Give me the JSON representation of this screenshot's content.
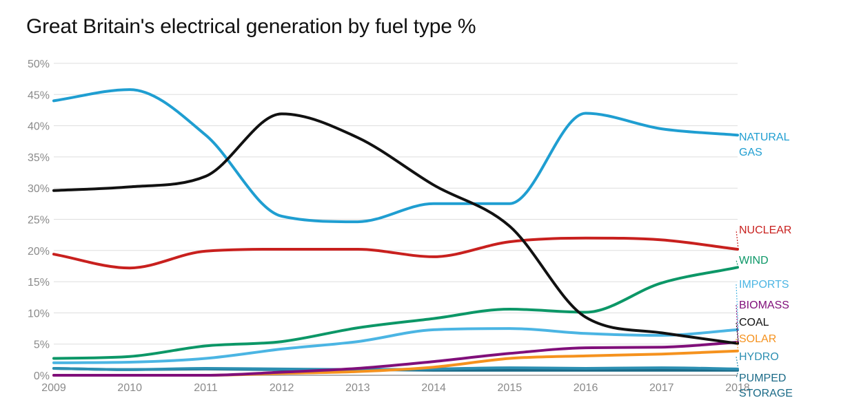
{
  "chart_data": {
    "type": "line",
    "title": "Great Britain's electrical generation by fuel type %",
    "xlabel": "",
    "ylabel": "",
    "x": [
      2009,
      2010,
      2011,
      2012,
      2013,
      2014,
      2015,
      2016,
      2017,
      2018
    ],
    "xtick_labels": [
      "2009",
      "2010",
      "2011",
      "2012",
      "2013",
      "2014",
      "2015",
      "2016",
      "2017",
      "2018"
    ],
    "ylim": [
      0,
      50
    ],
    "yticks": [
      0,
      5,
      10,
      15,
      20,
      25,
      30,
      35,
      40,
      45,
      50
    ],
    "ytick_labels": [
      "0%",
      "5%",
      "10%",
      "15%",
      "20%",
      "25%",
      "30%",
      "35%",
      "40%",
      "45%",
      "50%"
    ],
    "grid": true,
    "series": [
      {
        "name": "NATURAL GAS",
        "label_lines": [
          "NATURAL",
          "GAS"
        ],
        "color": "#1f9ed1",
        "values": [
          44,
          45.8,
          38.5,
          25.5,
          24.6,
          27.5,
          27.5,
          42,
          39.5,
          38.5
        ]
      },
      {
        "name": "NUCLEAR",
        "label_lines": [
          "NUCLEAR"
        ],
        "color": "#c8201e",
        "values": [
          19.4,
          17.2,
          19.9,
          20.2,
          20.2,
          19,
          21.4,
          22,
          21.7,
          20.2
        ]
      },
      {
        "name": "WIND",
        "label_lines": [
          "WIND"
        ],
        "color": "#0c9767",
        "values": [
          2.7,
          3,
          4.7,
          5.4,
          7.6,
          9.1,
          10.6,
          10.1,
          14.8,
          17.3
        ]
      },
      {
        "name": "IMPORTS",
        "label_lines": [
          "IMPORTS"
        ],
        "color": "#4bb5e3",
        "values": [
          2,
          2.1,
          2.7,
          4.2,
          5.4,
          7.3,
          7.5,
          6.7,
          6.4,
          7.3
        ]
      },
      {
        "name": "BIOMASS",
        "label_lines": [
          "BIOMASS"
        ],
        "color": "#800f7a",
        "values": [
          0,
          0,
          0,
          0.5,
          1.1,
          2.2,
          3.5,
          4.4,
          4.5,
          5.3
        ]
      },
      {
        "name": "COAL",
        "label_lines": [
          "COAL"
        ],
        "color": "#111111",
        "values": [
          29.6,
          30.2,
          31.9,
          41.9,
          38.1,
          30.5,
          23.9,
          9.3,
          6.8,
          5.1
        ]
      },
      {
        "name": "SOLAR",
        "label_lines": [
          "SOLAR"
        ],
        "color": "#f5921e",
        "values": [
          0,
          0,
          0,
          0.3,
          0.6,
          1.3,
          2.7,
          3.1,
          3.4,
          3.9
        ]
      },
      {
        "name": "HYDRO",
        "label_lines": [
          "HYDRO"
        ],
        "color": "#2c8fb2",
        "values": [
          1.1,
          0.9,
          1.1,
          1.0,
          0.9,
          1.0,
          1.2,
          1.1,
          1.2,
          1.0
        ]
      },
      {
        "name": "PUMPED STORAGE",
        "label_lines": [
          "PUMPED",
          "STORAGE"
        ],
        "color": "#1a6a87",
        "values": [
          1.1,
          0.9,
          1.0,
          0.9,
          0.9,
          0.8,
          0.8,
          0.8,
          0.8,
          0.8
        ]
      }
    ]
  }
}
